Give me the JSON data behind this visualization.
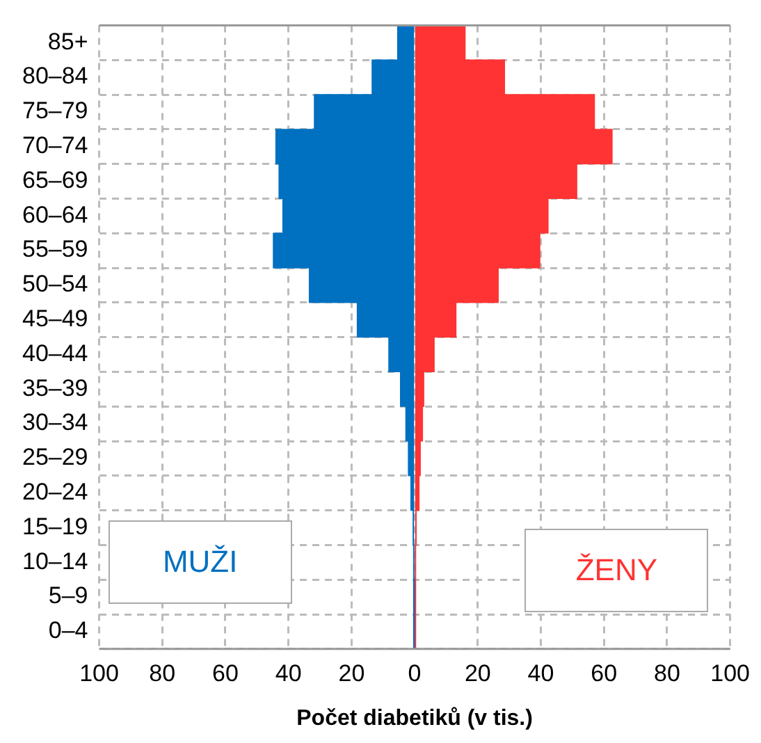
{
  "chart_data": {
    "type": "bar",
    "orientation": "horizontal",
    "stacked": true,
    "xlabel": "Počet diabetiků (v tis.)",
    "categories": [
      "85+",
      "80–84",
      "75–79",
      "70–74",
      "65–69",
      "60–64",
      "55–59",
      "50–54",
      "45–49",
      "40–44",
      "35–39",
      "30–34",
      "25–29",
      "20–24",
      "15–19",
      "10–14",
      "5–9",
      "0–4"
    ],
    "series": [
      {
        "name": "MUŽI",
        "color": "#0070c0",
        "values": [
          -5.4,
          -13.5,
          -31.8,
          -44,
          -43,
          -41.8,
          -44.8,
          -33.4,
          -18.2,
          -8.2,
          -4.5,
          -2.8,
          -2,
          -1.2,
          -0.5,
          -0.2,
          -0.1,
          -0.1
        ]
      },
      {
        "name": "ŽENY",
        "color": "#ff3333",
        "values": [
          16,
          28.5,
          57,
          62.6,
          51.4,
          42.3,
          39.7,
          26.5,
          13.1,
          6.2,
          2.9,
          2.5,
          1.8,
          1.4,
          0.5,
          0.2,
          0.1,
          0.1
        ]
      }
    ],
    "xlim": [
      -100,
      100
    ],
    "xticks": [
      {
        "value": -100,
        "label": "100"
      },
      {
        "value": -80,
        "label": "80"
      },
      {
        "value": -60,
        "label": "60"
      },
      {
        "value": -40,
        "label": "40"
      },
      {
        "value": -20,
        "label": "20"
      },
      0,
      20,
      40,
      60,
      80,
      100
    ],
    "grid": true,
    "legend": false
  }
}
